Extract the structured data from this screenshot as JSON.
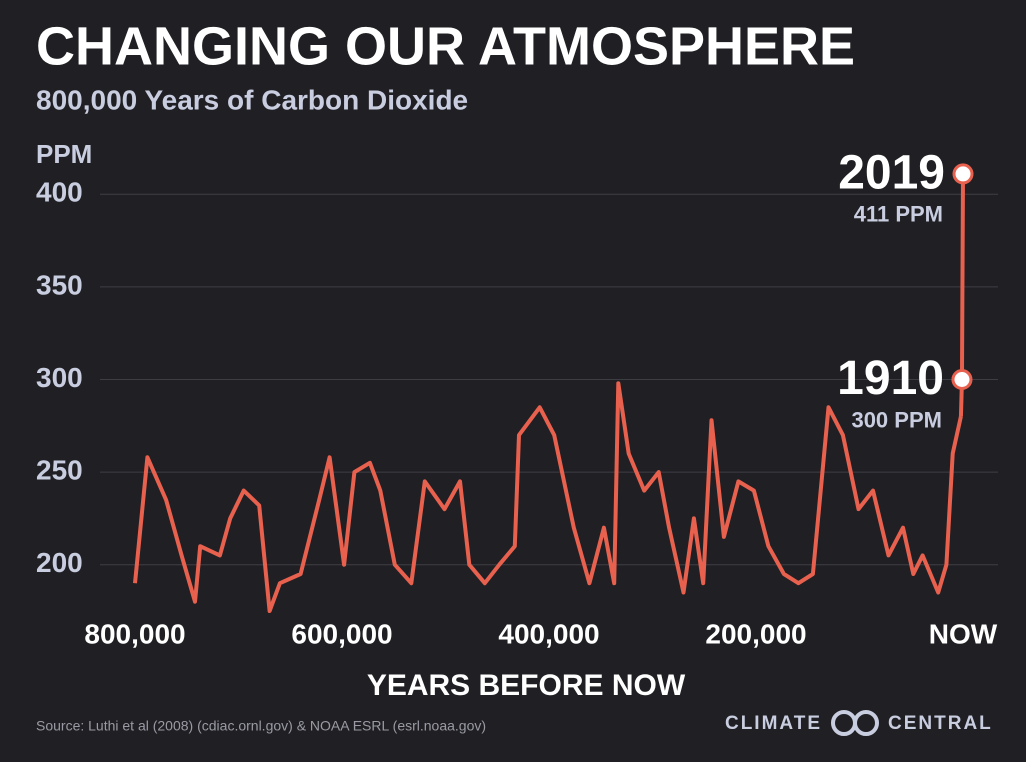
{
  "chart_data": {
    "type": "line",
    "title": "CHANGING OUR ATMOSPHERE",
    "subtitle": "800,000 Years of Carbon Dioxide",
    "y_label": "PPM",
    "x_label": "YEARS BEFORE NOW",
    "color": "#e8614e",
    "x": [
      800000,
      788000,
      770000,
      755000,
      742000,
      737000,
      718000,
      708000,
      695000,
      680000,
      670000,
      660000,
      640000,
      622000,
      612000,
      598000,
      588000,
      573000,
      563000,
      549000,
      533000,
      520000,
      501000,
      486000,
      477000,
      462000,
      448000,
      433000,
      429000,
      409000,
      395000,
      376000,
      361000,
      347000,
      337000,
      333000,
      323000,
      308000,
      294000,
      284000,
      270000,
      260000,
      251000,
      243000,
      231000,
      217000,
      202000,
      188000,
      173000,
      159000,
      145000,
      130000,
      116000,
      101000,
      87000,
      72000,
      58000,
      48000,
      39000,
      24000,
      16000,
      10000,
      2000
    ],
    "values": [
      190,
      258,
      235,
      205,
      180,
      210,
      205,
      225,
      240,
      232,
      175,
      190,
      195,
      235,
      258,
      200,
      250,
      255,
      240,
      200,
      190,
      245,
      230,
      245,
      200,
      190,
      200,
      210,
      270,
      285,
      270,
      220,
      190,
      220,
      190,
      298,
      260,
      240,
      250,
      220,
      185,
      225,
      190,
      278,
      215,
      245,
      240,
      210,
      195,
      190,
      195,
      285,
      270,
      230,
      240,
      205,
      220,
      195,
      205,
      185,
      200,
      260,
      280
    ],
    "highlights": [
      {
        "year": "1910",
        "label": "300 PPM",
        "value": 300,
        "x": 1000
      },
      {
        "year": "2019",
        "label": "411 PPM",
        "value": 411,
        "x": 0
      }
    ],
    "xlim": [
      800000,
      0
    ],
    "xticks": [
      {
        "value": 800000,
        "label": "800,000"
      },
      {
        "value": 600000,
        "label": "600,000"
      },
      {
        "value": 400000,
        "label": "400,000"
      },
      {
        "value": 200000,
        "label": "200,000"
      },
      {
        "value": 0,
        "label": "NOW"
      }
    ],
    "ylim": [
      175,
      425
    ],
    "yticks": [
      200,
      250,
      300,
      350,
      400
    ],
    "grid": true,
    "source": "Source: Luthi et al (2008) (cdiac.ornl.gov) & NOAA ESRL (esrl.noaa.gov)",
    "logo_left": "CLIMATE",
    "logo_right": "CENTRAL"
  }
}
